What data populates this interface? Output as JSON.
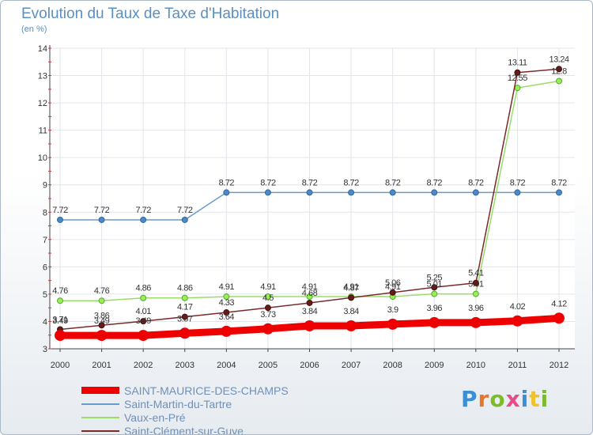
{
  "header": {
    "title": "Evolution du Taux de Taxe d'Habitation",
    "subtitle": "(en %)"
  },
  "logo": {
    "text": "Proxiti",
    "colors": [
      "#3a8fd8",
      "#e8762a",
      "#7dbb2a",
      "#e94b8a",
      "#3a8fd8",
      "#f2c12e",
      "#7dbb2a"
    ]
  },
  "chart_data": {
    "type": "line",
    "x": [
      "2000",
      "2001",
      "2002",
      "2003",
      "2004",
      "2005",
      "2006",
      "2007",
      "2008",
      "2009",
      "2010",
      "2011",
      "2012"
    ],
    "ylim": [
      3,
      14
    ],
    "yticks": [
      3,
      4,
      5,
      6,
      7,
      8,
      9,
      10,
      11,
      12,
      13,
      14
    ],
    "grid": true,
    "legend_position": "bottom-left",
    "series": [
      {
        "name": "SAINT-MAURICE-DES-CHAMPS",
        "color": "#ee0000",
        "values": [
          3.49,
          3.49,
          3.49,
          3.57,
          3.64,
          3.73,
          3.84,
          3.84,
          3.9,
          3.96,
          3.96,
          4.02,
          4.12
        ],
        "labels": [
          "3.49",
          "3.49",
          "3.49",
          "3.57",
          "3.64",
          "3.73",
          "3.84",
          "3.84",
          "3.9",
          "3.96",
          "3.96",
          "4.02",
          "4.12"
        ]
      },
      {
        "name": "Saint-Martin-du-Tartre",
        "color": "#6a9bc8",
        "values": [
          7.72,
          7.72,
          7.72,
          7.72,
          8.72,
          8.72,
          8.72,
          8.72,
          8.72,
          8.72,
          8.72,
          8.72,
          8.72
        ],
        "labels": [
          "7.72",
          "7.72",
          "7.72",
          "7.72",
          "8.72",
          "8.72",
          "8.72",
          "8.72",
          "8.72",
          "8.72",
          "8.72",
          "8.72",
          "8.72"
        ]
      },
      {
        "name": "Vaux-en-Pré",
        "color": "#99dd66",
        "values": [
          4.76,
          4.76,
          4.86,
          4.86,
          4.91,
          4.91,
          4.91,
          4.91,
          4.91,
          5.01,
          5.01,
          12.55,
          12.8
        ],
        "labels": [
          "4.76",
          "4.76",
          "4.86",
          "4.86",
          "4.91",
          "4.91",
          "4.91",
          "4.91",
          "4.91",
          "5.01",
          "5.01",
          "12.55",
          "12.8"
        ]
      },
      {
        "name": "Saint-Clément-sur-Guye",
        "color": "#7a2a2a",
        "values": [
          3.71,
          3.86,
          4.01,
          4.17,
          4.33,
          4.5,
          4.68,
          4.87,
          5.06,
          5.25,
          5.41,
          13.11,
          13.24
        ],
        "labels": [
          "3.71",
          "3.86",
          "4.01",
          "4.17",
          "4.33",
          "4.5",
          "4.68",
          "4.87",
          "5.06",
          "5.25",
          "5.41",
          "13.11",
          "13.24"
        ]
      }
    ]
  }
}
